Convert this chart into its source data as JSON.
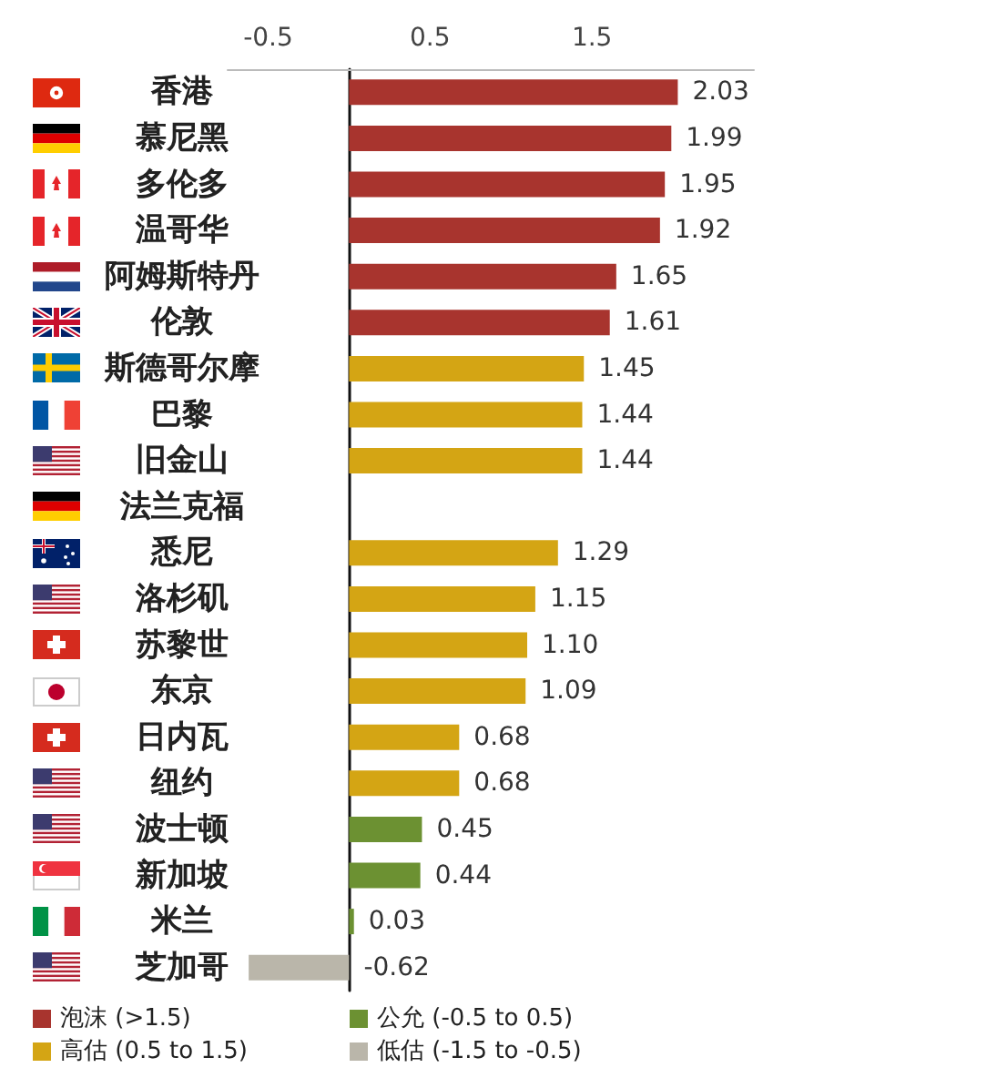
{
  "chart_data": {
    "type": "bar",
    "orientation": "horizontal",
    "categories": [
      "香港",
      "慕尼黑",
      "多伦多",
      "温哥华",
      "阿姆斯特丹",
      "伦敦",
      "斯德哥尔摩",
      "巴黎",
      "旧金山",
      "法兰克福",
      "悉尼",
      "洛杉矶",
      "苏黎世",
      "东京",
      "日内瓦",
      "纽约",
      "波士顿",
      "新加坡",
      "米兰",
      "芝加哥"
    ],
    "series": [
      {
        "name": "泡沫 (>1.5)",
        "color": "#a8342e",
        "values": [
          2.03,
          1.99,
          1.95,
          1.92,
          1.65,
          1.61,
          null,
          null,
          null,
          null,
          null,
          null,
          null,
          null,
          null,
          null,
          null,
          null,
          null,
          null
        ],
        "value_labels": [
          "2.03",
          "1.99",
          "1.95",
          "1.92",
          "1.65",
          "1.61",
          null,
          null,
          null,
          null,
          null,
          null,
          null,
          null,
          null,
          null,
          null,
          null,
          null,
          null
        ]
      },
      {
        "name": "高估 (0.5 to 1.5)",
        "color": "#d4a514",
        "values": [
          null,
          null,
          null,
          null,
          null,
          null,
          1.45,
          1.44,
          1.44,
          null,
          1.29,
          1.15,
          1.1,
          1.09,
          0.68,
          0.68,
          null,
          null,
          null,
          null
        ],
        "value_labels": [
          null,
          null,
          null,
          null,
          null,
          null,
          "1.45",
          "1.44",
          "1.44",
          null,
          "1.29",
          "1.15",
          "1.10",
          "1.09",
          "0.68",
          "0.68",
          null,
          null,
          null,
          null
        ]
      },
      {
        "name": "公允 (-0.5 to 0.5)",
        "color": "#6c9132",
        "values": [
          null,
          null,
          null,
          null,
          null,
          null,
          null,
          null,
          null,
          null,
          null,
          null,
          null,
          null,
          null,
          null,
          0.45,
          0.44,
          0.03,
          null
        ],
        "value_labels": [
          null,
          null,
          null,
          null,
          null,
          null,
          null,
          null,
          null,
          null,
          null,
          null,
          null,
          null,
          null,
          null,
          "0.45",
          "0.44",
          "0.03",
          null
        ]
      },
      {
        "name": "低估 (-1.5 to -0.5)",
        "color": "#bab6aa",
        "values": [
          null,
          null,
          null,
          null,
          null,
          null,
          null,
          null,
          null,
          null,
          null,
          null,
          null,
          null,
          null,
          null,
          null,
          null,
          null,
          -0.62
        ],
        "value_labels": [
          null,
          null,
          null,
          null,
          null,
          null,
          null,
          null,
          null,
          null,
          null,
          null,
          null,
          null,
          null,
          null,
          null,
          null,
          null,
          "-0.62"
        ]
      }
    ],
    "xlim": [
      -0.75,
      2.5
    ],
    "xticks": [
      -0.5,
      0.5,
      1.5
    ],
    "legend": "bottom"
  }
}
